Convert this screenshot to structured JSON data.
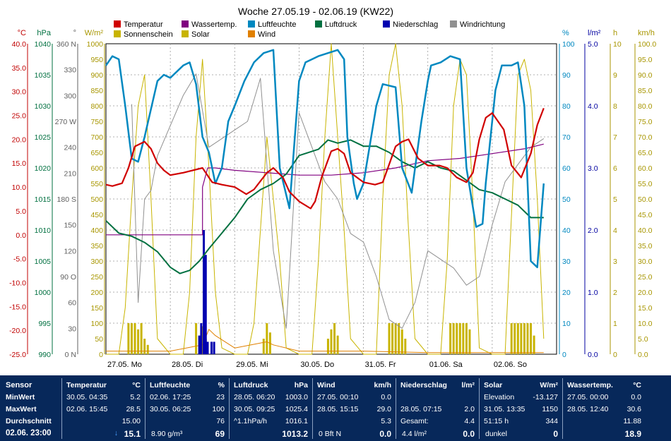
{
  "chart_data": {
    "type": "line",
    "title": "Woche 27.05.19 - 02.06.19 (KW22)",
    "x_labels": [
      "27.05.  Mo",
      "28.05.  Di",
      "29.05.  Mi",
      "30.05.  Do",
      "31.05.  Fr",
      "01.06.  Sa",
      "02.06.  So"
    ],
    "grid": true,
    "legend": [
      {
        "name": "Temperatur",
        "color": "#d00000"
      },
      {
        "name": "Wassertemp.",
        "color": "#800080"
      },
      {
        "name": "Luftfeuchte",
        "color": "#0088c0"
      },
      {
        "name": "Luftdruck",
        "color": "#007040"
      },
      {
        "name": "Niederschlag",
        "color": "#0000b0"
      },
      {
        "name": "Windrichtung",
        "color": "#909090"
      },
      {
        "name": "Sonnenschein",
        "color": "#c8b400"
      },
      {
        "name": "Solar",
        "color": "#c8b400"
      },
      {
        "name": "Wind",
        "color": "#e08000"
      }
    ],
    "axes": [
      {
        "unit": "°C",
        "color": "#c00000",
        "ticks": [
          "40.0",
          "35.0",
          "30.0",
          "25.0",
          "20.0",
          "15.0",
          "10.0",
          "5.0",
          "0.0",
          "-5.0",
          "-10.0",
          "-15.0",
          "-20.0",
          "-25.0"
        ]
      },
      {
        "unit": "hPa",
        "color": "#007040",
        "ticks": [
          "1040",
          "1035",
          "1030",
          "1025",
          "1020",
          "1015",
          "1010",
          "1005",
          "1000",
          "995",
          "990"
        ]
      },
      {
        "unit": "°",
        "color": "#606060",
        "ticks": [
          "360 N",
          "330",
          "300",
          "270 W",
          "240",
          "210",
          "180 S",
          "150",
          "120",
          "90 O",
          "60",
          "30",
          "0 N"
        ]
      },
      {
        "unit": "W/m²",
        "color": "#a89600",
        "ticks": [
          "1000",
          "950",
          "900",
          "850",
          "800",
          "750",
          "700",
          "650",
          "600",
          "550",
          "500",
          "450",
          "400",
          "350",
          "300",
          "250",
          "200",
          "150",
          "100",
          "50",
          "0"
        ]
      },
      {
        "unit": "%",
        "color": "#0088c0",
        "ticks": [
          "100",
          "90",
          "80",
          "70",
          "60",
          "50",
          "40",
          "30",
          "20",
          "10",
          "0"
        ]
      },
      {
        "unit": "l/m²",
        "color": "#0000a0",
        "ticks": [
          "5.0",
          "4.0",
          "3.0",
          "2.0",
          "1.0",
          "0.0"
        ]
      },
      {
        "unit": "h",
        "color": "#a89600",
        "ticks": [
          "10",
          "9",
          "8",
          "7",
          "6",
          "5",
          "4",
          "3",
          "2",
          "1",
          "0"
        ]
      },
      {
        "unit": "km/h",
        "color": "#a89600",
        "ticks": [
          "100.0",
          "95.0",
          "90.0",
          "85.0",
          "80.0",
          "75.0",
          "70.0",
          "65.0",
          "60.0",
          "55.0",
          "50.0",
          "45.0",
          "40.0",
          "35.0",
          "30.0",
          "25.0",
          "20.0",
          "15.0",
          "10.0",
          "5.0",
          "0.0"
        ]
      }
    ],
    "series": [
      {
        "name": "Temperatur",
        "unit": "°C",
        "x_days": [
          0,
          0.1,
          0.25,
          0.35,
          0.45,
          0.6,
          0.7,
          0.8,
          0.9,
          1.0,
          1.2,
          1.5,
          1.65,
          1.8,
          2.0,
          2.18,
          2.3,
          2.5,
          2.6,
          2.75,
          2.85,
          3.0,
          3.18,
          3.25,
          3.35,
          3.5,
          3.6,
          3.7,
          3.8,
          4.0,
          4.18,
          4.3,
          4.5,
          4.6,
          4.7,
          4.85,
          5.0,
          5.18,
          5.3,
          5.45,
          5.6,
          5.7,
          5.8,
          5.9,
          6.0,
          6.18,
          6.3,
          6.45,
          6.6,
          6.7,
          6.8
        ],
        "values": [
          10.5,
          10.2,
          10.8,
          14,
          18.5,
          19.5,
          18,
          15,
          13.5,
          12.5,
          13,
          14,
          11,
          10.5,
          10,
          8.5,
          9.5,
          13,
          14,
          12,
          9,
          7,
          5.5,
          7,
          12,
          17.5,
          18,
          17,
          13,
          11,
          10.5,
          11,
          18.5,
          19.5,
          20,
          16,
          14.5,
          14.5,
          14,
          12,
          11,
          13,
          20,
          24.5,
          25.5,
          22,
          14.5,
          12,
          17,
          23,
          26.5
        ]
      },
      {
        "name": "Wassertemp.",
        "unit": "°C",
        "x_days": [
          0,
          1.5,
          1.5,
          1.58,
          1.7,
          2.0,
          2.5,
          3.0,
          3.5,
          4.0,
          4.5,
          5.0,
          5.5,
          6.0,
          6.5,
          6.8
        ],
        "values": [
          0,
          0,
          10,
          14,
          14,
          13.5,
          13,
          12.5,
          12.5,
          13,
          14,
          15.5,
          16,
          17,
          18,
          19
        ]
      },
      {
        "name": "Luftfeuchte",
        "unit": "%",
        "x_days": [
          0,
          0.1,
          0.2,
          0.3,
          0.4,
          0.5,
          0.6,
          0.8,
          0.9,
          1.0,
          1.2,
          1.3,
          1.4,
          1.5,
          1.6,
          1.7,
          1.8,
          1.9,
          2.0,
          2.15,
          2.3,
          2.45,
          2.6,
          2.7,
          2.85,
          3.0,
          3.1,
          3.2,
          3.3,
          3.45,
          3.6,
          3.7,
          3.75,
          3.85,
          3.9,
          4.0,
          4.2,
          4.3,
          4.5,
          4.6,
          4.75,
          4.9,
          5.0,
          5.05,
          5.2,
          5.35,
          5.5,
          5.6,
          5.75,
          5.85,
          5.9,
          6.05,
          6.15,
          6.3,
          6.4,
          6.5,
          6.6,
          6.7,
          6.8
        ],
        "values": [
          93,
          96,
          95,
          80,
          63,
          62,
          70,
          88,
          90,
          89,
          93,
          94,
          87,
          70,
          65,
          55,
          60,
          75,
          80,
          88,
          94,
          97,
          98,
          60,
          47,
          88,
          94,
          95,
          96,
          97,
          98,
          95,
          70,
          55,
          50,
          55,
          80,
          87,
          86,
          60,
          52,
          75,
          88,
          93,
          94,
          96,
          95,
          60,
          41,
          42,
          55,
          85,
          93,
          93,
          94,
          80,
          30,
          28,
          55
        ]
      },
      {
        "name": "Luftdruck",
        "unit": "hPa",
        "x_days": [
          0,
          0.2,
          0.4,
          0.6,
          0.8,
          1.0,
          1.15,
          1.3,
          1.45,
          1.6,
          1.8,
          2.0,
          2.2,
          2.4,
          2.6,
          2.8,
          3.0,
          3.3,
          3.45,
          3.6,
          3.8,
          4.0,
          4.2,
          4.4,
          4.6,
          4.8,
          5.0,
          5.2,
          5.4,
          5.6,
          5.8,
          6.0,
          6.2,
          6.4,
          6.6,
          6.8
        ],
        "values": [
          1011.5,
          1009.5,
          1009,
          1008,
          1006.5,
          1004,
          1003,
          1003.5,
          1005,
          1007,
          1009.5,
          1012,
          1015,
          1016.5,
          1017.5,
          1019,
          1022,
          1023,
          1024.5,
          1024,
          1024.5,
          1023.5,
          1023.5,
          1022.5,
          1021,
          1020,
          1021,
          1020,
          1019.5,
          1018,
          1016.5,
          1016,
          1015,
          1014,
          1012,
          1012
        ]
      },
      {
        "name": "Niederschlag",
        "unit": "l/m²",
        "x_days": [
          1.45,
          1.48,
          1.52,
          1.55,
          1.58,
          1.64,
          1.68
        ],
        "values": [
          0.3,
          0.5,
          2.0,
          1.6,
          0.2,
          0.2,
          0.2
        ]
      },
      {
        "name": "Windrichtung",
        "unit": "°",
        "x_days": [
          0.4,
          0.5,
          0.6,
          0.7,
          0.8,
          1.0,
          1.2,
          1.4,
          1.6,
          1.8,
          2.0,
          2.2,
          2.4,
          2.6,
          2.8,
          3.0,
          3.2,
          3.4,
          3.6,
          3.8,
          4.0,
          4.2,
          4.4,
          4.6,
          4.8,
          5.0,
          5.2,
          5.4,
          5.6,
          5.8,
          6.0,
          6.2,
          6.4,
          6.6,
          6.8
        ],
        "values": [
          290,
          60,
          180,
          190,
          230,
          265,
          300,
          325,
          240,
          250,
          260,
          270,
          320,
          120,
          30,
          280,
          240,
          200,
          180,
          140,
          130,
          90,
          40,
          30,
          60,
          120,
          110,
          100,
          80,
          90,
          150,
          200,
          220,
          240,
          250
        ]
      },
      {
        "name": "Solar",
        "unit": "W/m²",
        "x_days": [
          0,
          0.2,
          0.3,
          0.4,
          0.5,
          0.6,
          0.7,
          0.8,
          1.0,
          1.2,
          1.3,
          1.4,
          1.5,
          1.6,
          1.7,
          1.8,
          2.0,
          2.2,
          2.3,
          2.4,
          2.5,
          2.6,
          2.7,
          2.8,
          3.0,
          3.2,
          3.3,
          3.4,
          3.5,
          3.6,
          3.7,
          3.8,
          4.0,
          4.2,
          4.3,
          4.4,
          4.5,
          4.6,
          4.7,
          4.8,
          5.0,
          5.2,
          5.3,
          5.4,
          5.5,
          5.6,
          5.7,
          5.8,
          6.0,
          6.2,
          6.3,
          6.4,
          6.5,
          6.6,
          6.7,
          6.8
        ],
        "values": [
          0,
          0,
          150,
          500,
          800,
          900,
          500,
          50,
          0,
          0,
          200,
          700,
          950,
          600,
          200,
          20,
          0,
          0,
          100,
          400,
          700,
          500,
          300,
          20,
          0,
          0,
          300,
          700,
          1000,
          700,
          400,
          50,
          0,
          0,
          500,
          900,
          1000,
          800,
          400,
          50,
          0,
          0,
          300,
          800,
          950,
          900,
          500,
          20,
          0,
          0,
          450,
          900,
          950,
          850,
          500,
          50
        ]
      },
      {
        "name": "Sonnenschein",
        "unit": "h",
        "x_days": [
          0.35,
          0.4,
          0.45,
          0.5,
          0.55,
          0.6,
          0.65,
          1.4,
          1.45,
          1.5,
          1.55,
          2.45,
          2.5,
          2.55,
          3.45,
          3.5,
          3.55,
          3.6,
          4.4,
          4.45,
          4.5,
          4.55,
          4.6,
          4.65,
          5.35,
          5.4,
          5.45,
          5.5,
          5.55,
          5.6,
          5.65,
          6.3,
          6.35,
          6.4,
          6.45,
          6.5,
          6.55,
          6.6,
          6.65
        ],
        "values": [
          1,
          1,
          1,
          0.8,
          1,
          0.5,
          0.3,
          1,
          0.6,
          0.9,
          0.5,
          0.5,
          1,
          0.7,
          0.5,
          0.8,
          1,
          0.6,
          1,
          1,
          1,
          1,
          0.8,
          0.5,
          1,
          1,
          1,
          1,
          1,
          1,
          0.8,
          1,
          1,
          1,
          1,
          1,
          1,
          1,
          0.6
        ]
      },
      {
        "name": "Wind",
        "unit": "km/h",
        "x_days": [
          0,
          1.0,
          1.5,
          1.6,
          1.7,
          2.0,
          2.5,
          2.6,
          3.0,
          4.0,
          5.0,
          6.0,
          6.8
        ],
        "values": [
          1,
          1,
          3,
          8,
          6,
          2,
          4,
          3,
          1,
          1,
          0.5,
          0.5,
          0.5
        ]
      }
    ]
  },
  "summary": {
    "sensor": {
      "header": "Sensor",
      "rows": [
        "MinWert",
        "MaxWert",
        "Durchschnitt"
      ],
      "footer": "02.06.  23:00"
    },
    "temperatur": {
      "header": "Temperatur",
      "unit": "°C",
      "rows": [
        [
          "30.05.  04:35",
          "5.2"
        ],
        [
          "02.06.  15:45",
          "28.5"
        ],
        [
          "",
          "15.00"
        ]
      ],
      "footer_mark": "↓",
      "footer": "15.1"
    },
    "luftfeuchte": {
      "header": "Luftfeuchte",
      "unit": "%",
      "rows": [
        [
          "02.06.  17:25",
          "23"
        ],
        [
          "30.05.  06:25",
          "100"
        ],
        [
          "",
          "76"
        ]
      ],
      "footer_label": "8.90 g/m³",
      "footer": "69"
    },
    "luftdruck": {
      "header": "Luftdruck",
      "unit": "hPa",
      "rows": [
        [
          "28.05.  06:20",
          "1003.0"
        ],
        [
          "30.05.  09:25",
          "1025.4"
        ],
        [
          "^1.1hPa/h",
          "1016.1"
        ]
      ],
      "footer": "1013.2"
    },
    "wind": {
      "header": "Wind",
      "unit": "km/h",
      "rows": [
        [
          "27.05.  00:10",
          "0.0"
        ],
        [
          "28.05.  15:15",
          "29.0"
        ],
        [
          "",
          "5.3"
        ]
      ],
      "footer_label": "0 Bft N",
      "footer": "0.0"
    },
    "niederschlag": {
      "header": "Niederschlag",
      "unit": "l/m²",
      "rows": [
        [
          "",
          ""
        ],
        [
          "28.05.  07:15",
          "2.0"
        ],
        [
          "Gesamt:",
          "4.4"
        ]
      ],
      "footer_label": "4.4 l/m²",
      "footer": "0.0"
    },
    "solar": {
      "header": "Solar",
      "unit": "W/m²",
      "rows": [
        [
          "Elevation",
          "-13.127"
        ],
        [
          "31.05.  13:35",
          "1150"
        ],
        [
          "51:15 h",
          "344"
        ]
      ],
      "footer_label": "dunkel",
      "footer": "0"
    },
    "wassertemp": {
      "header": "Wassertemp.",
      "unit": "°C",
      "rows": [
        [
          "27.05.  00:00",
          "0.0"
        ],
        [
          "28.05.  12:40",
          "30.6"
        ],
        [
          "",
          "11.88"
        ]
      ],
      "footer": "18.9"
    }
  }
}
